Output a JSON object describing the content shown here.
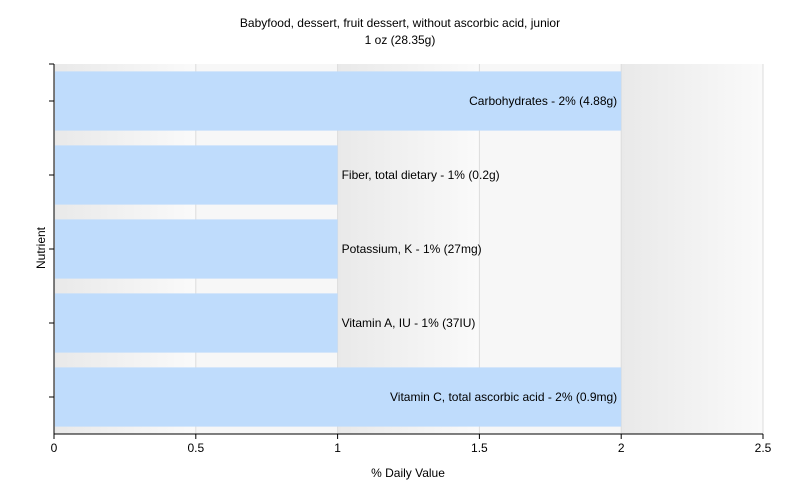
{
  "chart_data": {
    "type": "bar",
    "orientation": "horizontal",
    "title": "Babyfood, dessert, fruit dessert, without ascorbic acid, junior",
    "subtitle": "1 oz (28.35g)",
    "xlabel": "% Daily Value",
    "ylabel": "Nutrient",
    "xlim": [
      0,
      2.5
    ],
    "x_ticks": [
      0,
      0.5,
      1,
      1.5,
      2,
      2.5
    ],
    "x_tick_labels": [
      "0",
      "0.5",
      "1",
      "1.5",
      "2",
      "2.5"
    ],
    "grid": true,
    "legend": "none",
    "categories": [
      "Carbohydrates",
      "Fiber, total dietary",
      "Potassium, K",
      "Vitamin A, IU",
      "Vitamin C, total ascorbic acid"
    ],
    "values": [
      2,
      1,
      1,
      1,
      2
    ],
    "amounts": [
      "4.88g",
      "0.2g",
      "27mg",
      "37IU",
      "0.9mg"
    ],
    "data_labels": [
      "Carbohydrates - 2% (4.88g)",
      "Fiber, total dietary - 1% (0.2g)",
      "Potassium, K - 1% (27mg)",
      "Vitamin A, IU - 1% (37IU)",
      "Vitamin C, total ascorbic acid - 2% (0.9mg)"
    ],
    "colors": {
      "bar": "#bfdcfc",
      "plot_background": "#f7f7f7",
      "grid_band": "#efefef",
      "axis": "#000000"
    }
  }
}
